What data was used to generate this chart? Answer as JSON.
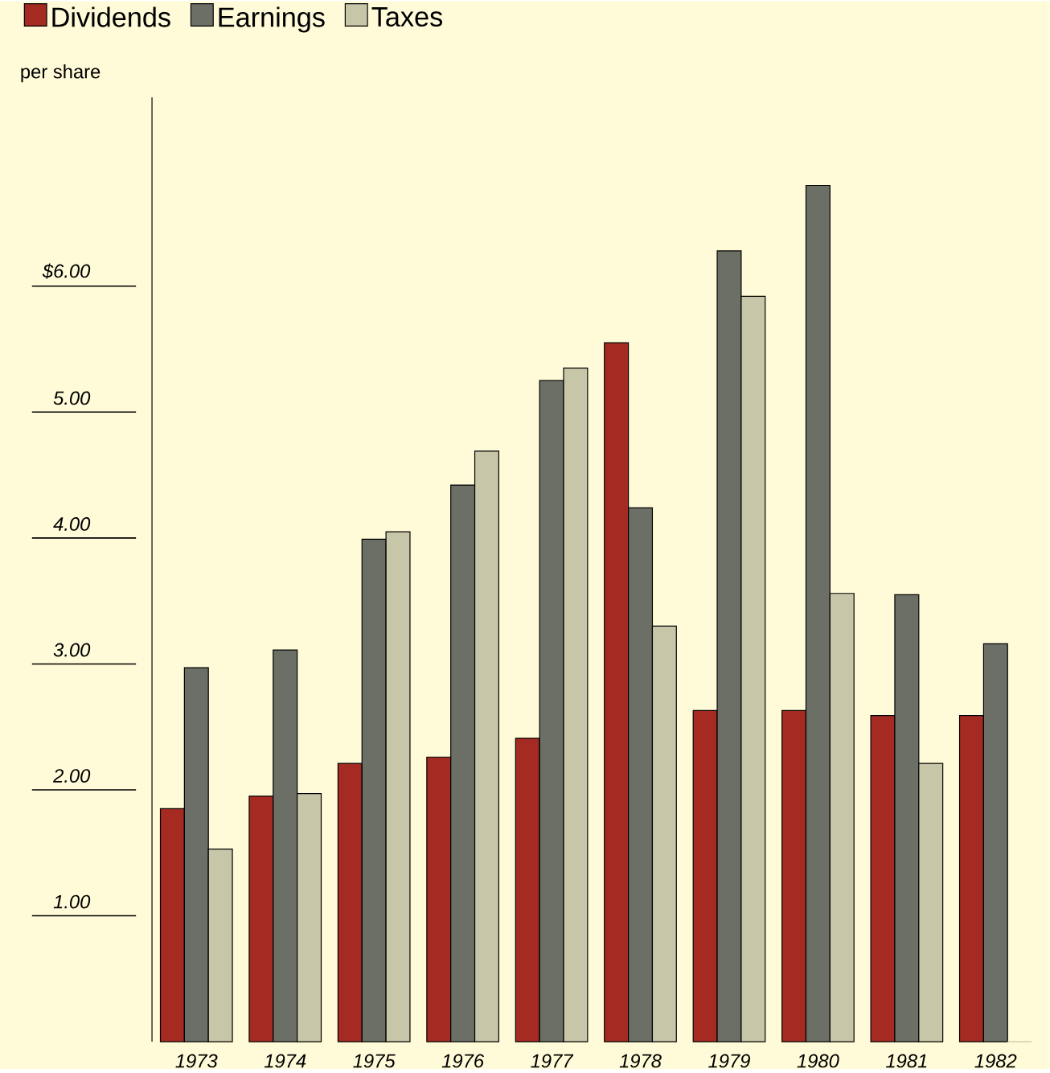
{
  "chart_data": {
    "type": "bar",
    "ylabel": "per share",
    "categories": [
      "1973",
      "1974",
      "1975",
      "1976",
      "1977",
      "1978",
      "1979",
      "1980",
      "1981",
      "1982"
    ],
    "series": [
      {
        "name": "Dividends",
        "color": "#a52a22",
        "values": [
          1.85,
          1.95,
          2.21,
          2.26,
          2.41,
          5.55,
          2.63,
          2.63,
          2.59,
          2.59
        ]
      },
      {
        "name": "Earnings",
        "color": "#6b6f66",
        "values": [
          2.97,
          3.11,
          3.99,
          4.42,
          5.25,
          4.24,
          6.28,
          6.8,
          3.55,
          3.16
        ]
      },
      {
        "name": "Taxes",
        "color": "#c8c6a8",
        "values": [
          1.53,
          1.97,
          4.05,
          4.69,
          5.35,
          3.3,
          5.92,
          3.56,
          2.21,
          0
        ]
      }
    ],
    "ylim": [
      0,
      7.5
    ],
    "yticks": [
      {
        "value": 1,
        "label": "1.00"
      },
      {
        "value": 2,
        "label": "2.00"
      },
      {
        "value": 3,
        "label": "3.00"
      },
      {
        "value": 4,
        "label": "4.00"
      },
      {
        "value": 5,
        "label": "5.00"
      },
      {
        "value": 6,
        "label": "$6.00"
      }
    ],
    "legend": "top left"
  }
}
